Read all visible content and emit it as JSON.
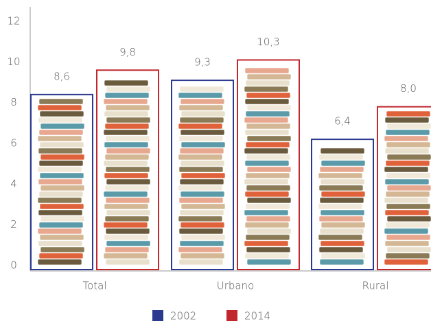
{
  "chart_data": {
    "type": "bar",
    "categories": [
      "Total",
      "Urbano",
      "Rural"
    ],
    "series": [
      {
        "name": "2002",
        "color": "#2b3990",
        "values": [
          8.6,
          9.3,
          6.4
        ],
        "value_labels": [
          "8,6",
          "9,3",
          "6,4"
        ]
      },
      {
        "name": "2014",
        "color": "#c1272d",
        "values": [
          9.8,
          10.3,
          8.0
        ],
        "value_labels": [
          "9,8",
          "10,3",
          "8,0"
        ]
      }
    ],
    "ylim": [
      0,
      12
    ],
    "yticks": [
      0,
      2,
      4,
      6,
      8,
      10,
      12
    ]
  }
}
